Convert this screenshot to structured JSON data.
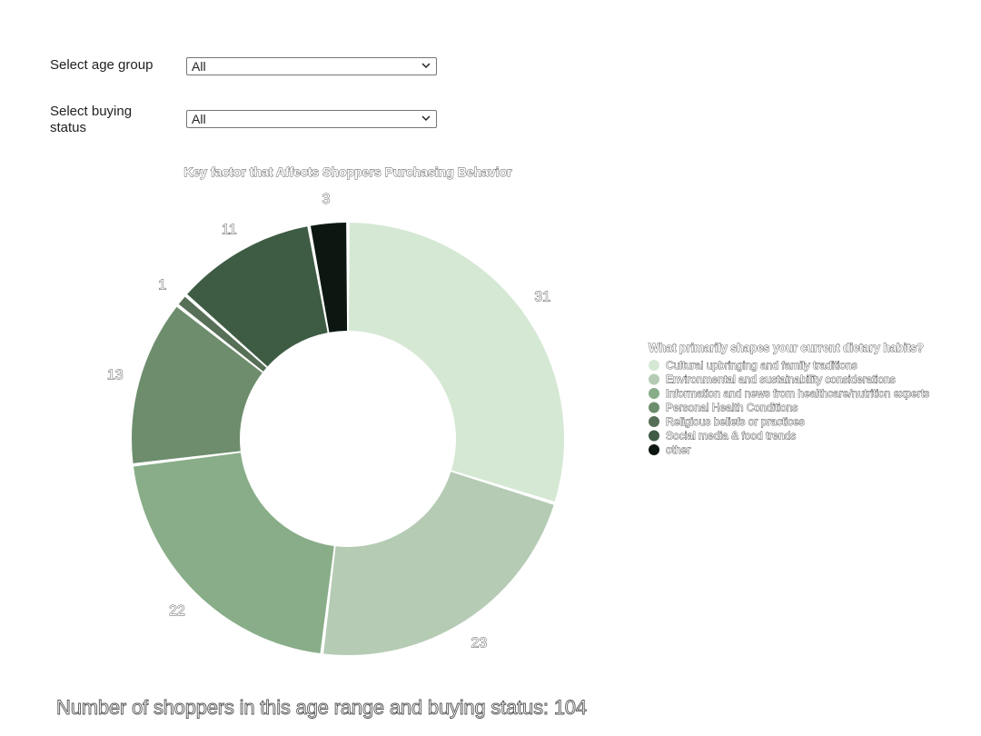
{
  "filters": [
    {
      "label": "Select age group",
      "value": "All"
    },
    {
      "label": "Select buying status",
      "value": "All"
    }
  ],
  "footer": {
    "text": "Number of shoppers in this age range and buying status: 104"
  },
  "chart_data": {
    "type": "pie",
    "donut": true,
    "title": "Key factor that Affects Shoppers Purchasing Behavior",
    "legend_title": "What primarily shapes your current dietary habits?",
    "legend_position": "right",
    "categories": [
      "Cultural upbringing and family traditions",
      "Environmental and sustainability considerations",
      "Information and news from healthcare/nutrition experts",
      "Personal Health Conditions",
      "Religious beliefs or practices",
      "Social media & food trends",
      "other"
    ],
    "values": [
      31,
      23,
      22,
      13,
      1,
      11,
      3
    ],
    "colors": [
      "#d5e8d4",
      "#b5cbb4",
      "#88ad88",
      "#6d8d6d",
      "#566f56",
      "#3e5c44",
      "#0b1710"
    ]
  }
}
